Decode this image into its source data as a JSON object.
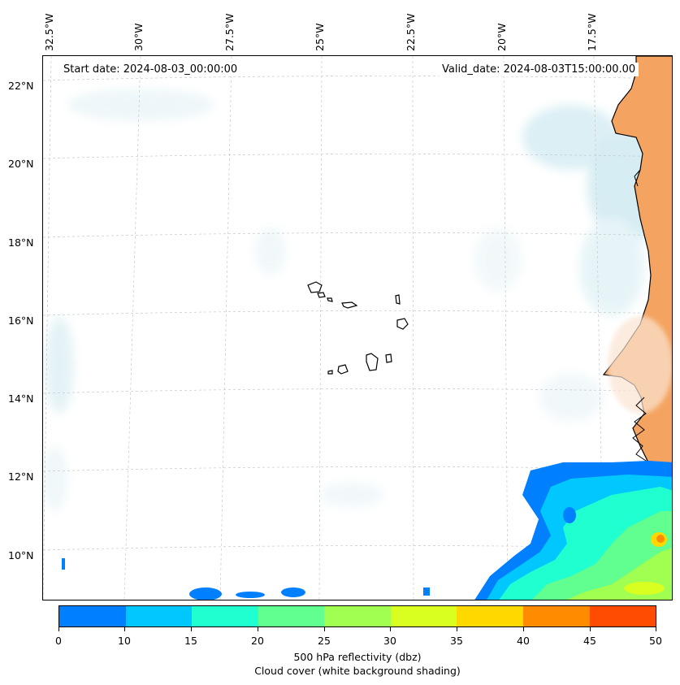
{
  "header": {
    "start_date": "Start date: 2024-08-03_00:00:00",
    "valid_date": "Valid_date: 2024-08-03T15:00:00.00"
  },
  "map": {
    "lon_labels": [
      "32.5°W",
      "30°W",
      "27.5°W",
      "25°W",
      "22.5°W",
      "20°W",
      "17.5°W"
    ],
    "lat_labels": [
      "22°N",
      "20°N",
      "18°N",
      "16°N",
      "14°N",
      "12°N",
      "10°N"
    ],
    "land_color": "#f4a460",
    "gridlines": true
  },
  "colorbar": {
    "ticks": [
      "0",
      "10",
      "15",
      "20",
      "25",
      "30",
      "35",
      "40",
      "45",
      "50"
    ],
    "colors": [
      "#0080ff",
      "#00c8ff",
      "#20ffd0",
      "#60ff90",
      "#a0ff50",
      "#d8ff20",
      "#ffd800",
      "#ff8c00",
      "#ff4c00"
    ],
    "label_line1": "500 hPa reflectivity (dbz)",
    "label_line2": "Cloud cover (white background shading)"
  }
}
